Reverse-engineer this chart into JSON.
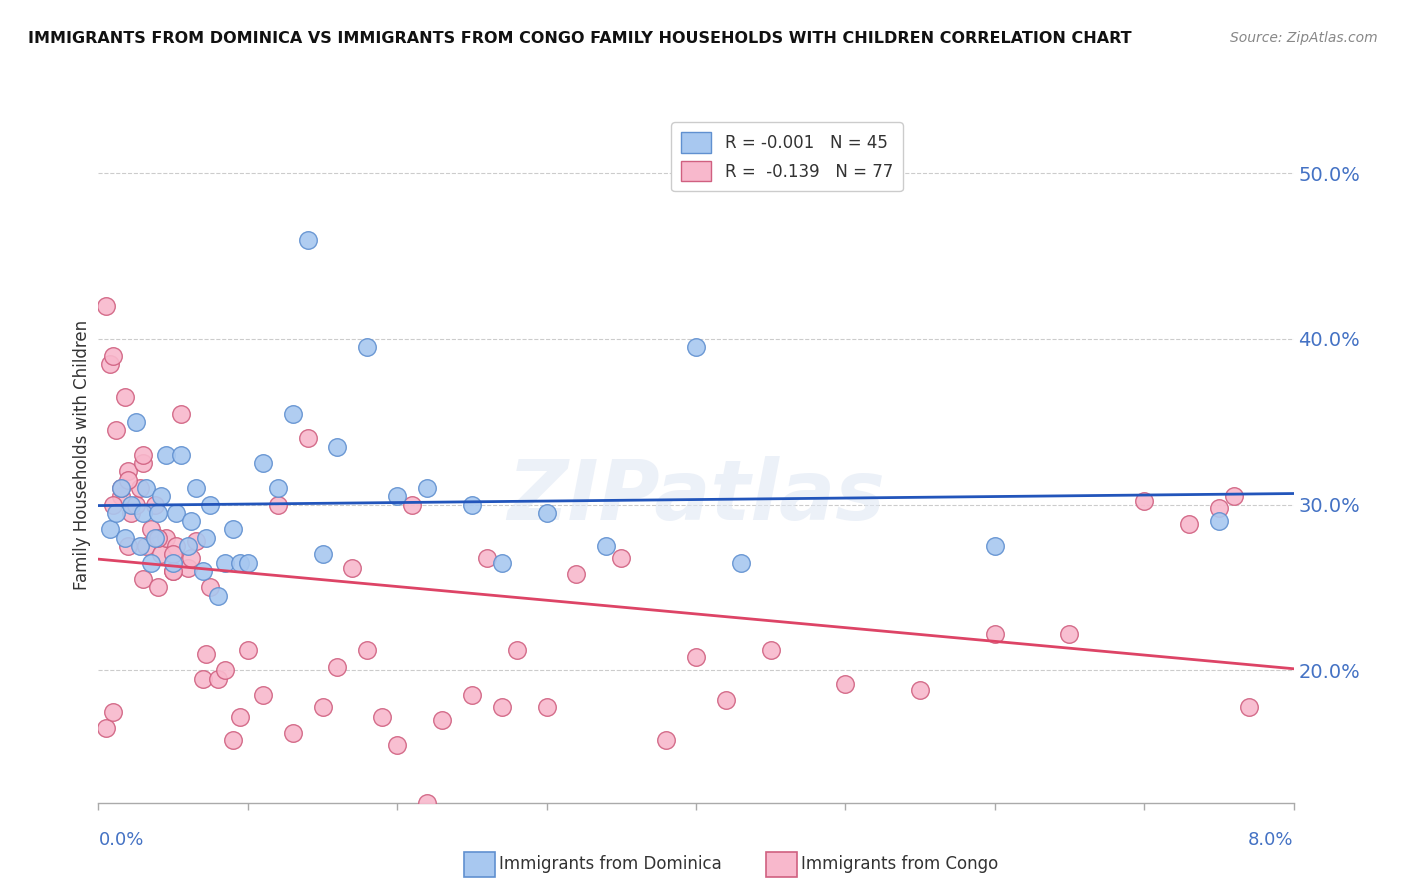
{
  "title": "IMMIGRANTS FROM DOMINICA VS IMMIGRANTS FROM CONGO FAMILY HOUSEHOLDS WITH CHILDREN CORRELATION CHART",
  "source": "Source: ZipAtlas.com",
  "ylabel": "Family Households with Children",
  "ytick_values": [
    0.2,
    0.3,
    0.4,
    0.5
  ],
  "ytick_labels": [
    "20.0%",
    "30.0%",
    "40.0%",
    "50.0%"
  ],
  "xlim": [
    0.0,
    0.08
  ],
  "ylim": [
    0.12,
    0.54
  ],
  "dominica_color": "#a8c8f0",
  "congo_color": "#f8b8cc",
  "dominica_edge": "#6090d0",
  "congo_edge": "#d06080",
  "trend_dominica_color": "#2255bb",
  "trend_congo_color": "#dd4466",
  "watermark": "ZIPatlas",
  "axis_color": "#4472c4",
  "grid_color": "#cccccc",
  "dominica_x": [
    0.0008,
    0.0012,
    0.0015,
    0.0018,
    0.0022,
    0.0025,
    0.0028,
    0.003,
    0.0032,
    0.0035,
    0.0038,
    0.004,
    0.0042,
    0.0045,
    0.005,
    0.0052,
    0.0055,
    0.006,
    0.0062,
    0.0065,
    0.007,
    0.0072,
    0.0075,
    0.008,
    0.0085,
    0.009,
    0.0095,
    0.01,
    0.011,
    0.012,
    0.013,
    0.014,
    0.015,
    0.016,
    0.018,
    0.02,
    0.022,
    0.025,
    0.027,
    0.03,
    0.034,
    0.04,
    0.043,
    0.06,
    0.075
  ],
  "dominica_y": [
    0.285,
    0.295,
    0.31,
    0.28,
    0.3,
    0.35,
    0.275,
    0.295,
    0.31,
    0.265,
    0.28,
    0.295,
    0.305,
    0.33,
    0.265,
    0.295,
    0.33,
    0.275,
    0.29,
    0.31,
    0.26,
    0.28,
    0.3,
    0.245,
    0.265,
    0.285,
    0.265,
    0.265,
    0.325,
    0.31,
    0.355,
    0.46,
    0.27,
    0.335,
    0.395,
    0.305,
    0.31,
    0.3,
    0.265,
    0.295,
    0.275,
    0.395,
    0.265,
    0.275,
    0.29
  ],
  "congo_x": [
    0.0005,
    0.0008,
    0.001,
    0.0012,
    0.0015,
    0.0018,
    0.002,
    0.0022,
    0.0025,
    0.0028,
    0.003,
    0.0032,
    0.0035,
    0.0038,
    0.004,
    0.0042,
    0.0045,
    0.005,
    0.0052,
    0.0055,
    0.006,
    0.0062,
    0.0065,
    0.007,
    0.0072,
    0.0075,
    0.008,
    0.0085,
    0.009,
    0.0095,
    0.01,
    0.011,
    0.012,
    0.013,
    0.014,
    0.015,
    0.016,
    0.017,
    0.018,
    0.019,
    0.02,
    0.021,
    0.022,
    0.023,
    0.025,
    0.026,
    0.027,
    0.028,
    0.03,
    0.032,
    0.035,
    0.038,
    0.04,
    0.042,
    0.045,
    0.05,
    0.055,
    0.06,
    0.065,
    0.07,
    0.073,
    0.075,
    0.076,
    0.077,
    0.0005,
    0.001,
    0.001,
    0.0015,
    0.002,
    0.002,
    0.003,
    0.003,
    0.004,
    0.005,
    0.005
  ],
  "congo_y": [
    0.42,
    0.385,
    0.39,
    0.345,
    0.305,
    0.365,
    0.275,
    0.295,
    0.3,
    0.31,
    0.255,
    0.275,
    0.285,
    0.3,
    0.25,
    0.27,
    0.28,
    0.26,
    0.275,
    0.355,
    0.262,
    0.268,
    0.278,
    0.195,
    0.21,
    0.25,
    0.195,
    0.2,
    0.158,
    0.172,
    0.212,
    0.185,
    0.3,
    0.162,
    0.34,
    0.178,
    0.202,
    0.262,
    0.212,
    0.172,
    0.155,
    0.3,
    0.12,
    0.17,
    0.185,
    0.268,
    0.178,
    0.212,
    0.178,
    0.258,
    0.268,
    0.158,
    0.208,
    0.182,
    0.212,
    0.192,
    0.188,
    0.222,
    0.222,
    0.302,
    0.288,
    0.298,
    0.305,
    0.178,
    0.165,
    0.175,
    0.3,
    0.31,
    0.32,
    0.315,
    0.325,
    0.33,
    0.28,
    0.27,
    0.26
  ]
}
